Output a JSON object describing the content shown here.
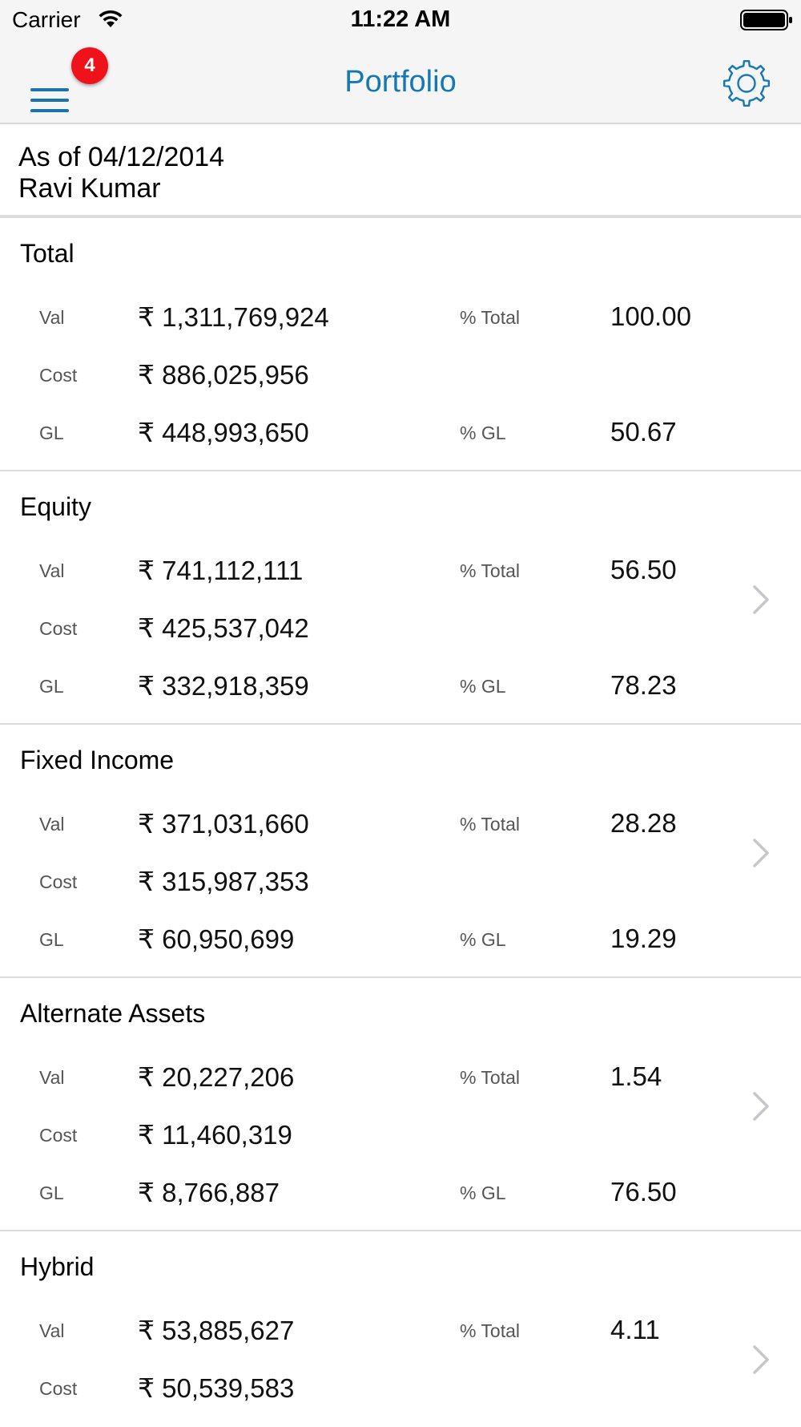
{
  "status_bar": {
    "carrier": "Carrier",
    "time": "11:22 AM",
    "wifi_icon": "wifi-icon",
    "battery_icon": "battery-icon"
  },
  "nav": {
    "title": "Portfolio",
    "menu_icon": "hamburger-menu-icon",
    "badge_count": "4",
    "settings_icon": "gear-icon",
    "accent_color": "#1677b5",
    "badge_color": "#f0121a"
  },
  "header": {
    "as_of": "As of 04/12/2014",
    "user_name": "Ravi Kumar"
  },
  "sections": [
    {
      "title": "Total",
      "val_label": "Val",
      "val": "₹ 1,311,769,924",
      "cost_label": "Cost",
      "cost": "₹ 886,025,956",
      "gl_label": "GL",
      "gl": "₹ 448,993,650",
      "pct_total_label": "% Total",
      "pct_total": "100.00",
      "pct_gl_label": "% GL",
      "pct_gl": "50.67"
    },
    {
      "title": "Equity",
      "val_label": "Val",
      "val": "₹ 741,112,111",
      "cost_label": "Cost",
      "cost": "₹ 425,537,042",
      "gl_label": "GL",
      "gl": "₹ 332,918,359",
      "pct_total_label": "% Total",
      "pct_total": "56.50",
      "pct_gl_label": "% GL",
      "pct_gl": "78.23",
      "has_chevron": true
    },
    {
      "title": "Fixed Income",
      "val_label": "Val",
      "val": "₹ 371,031,660",
      "cost_label": "Cost",
      "cost": "₹ 315,987,353",
      "gl_label": "GL",
      "gl": "₹ 60,950,699",
      "pct_total_label": "% Total",
      "pct_total": "28.28",
      "pct_gl_label": "% GL",
      "pct_gl": "19.29",
      "has_chevron": true
    },
    {
      "title": "Alternate Assets",
      "val_label": "Val",
      "val": "₹ 20,227,206",
      "cost_label": "Cost",
      "cost": "₹ 11,460,319",
      "gl_label": "GL",
      "gl": "₹ 8,766,887",
      "pct_total_label": "% Total",
      "pct_total": "1.54",
      "pct_gl_label": "% GL",
      "pct_gl": "76.50",
      "has_chevron": true
    },
    {
      "title": "Hybrid",
      "val_label": "Val",
      "val": "₹ 53,885,627",
      "cost_label": "Cost",
      "cost": "₹ 50,539,583",
      "pct_total_label": "% Total",
      "pct_total": "4.11",
      "has_chevron": true
    }
  ]
}
